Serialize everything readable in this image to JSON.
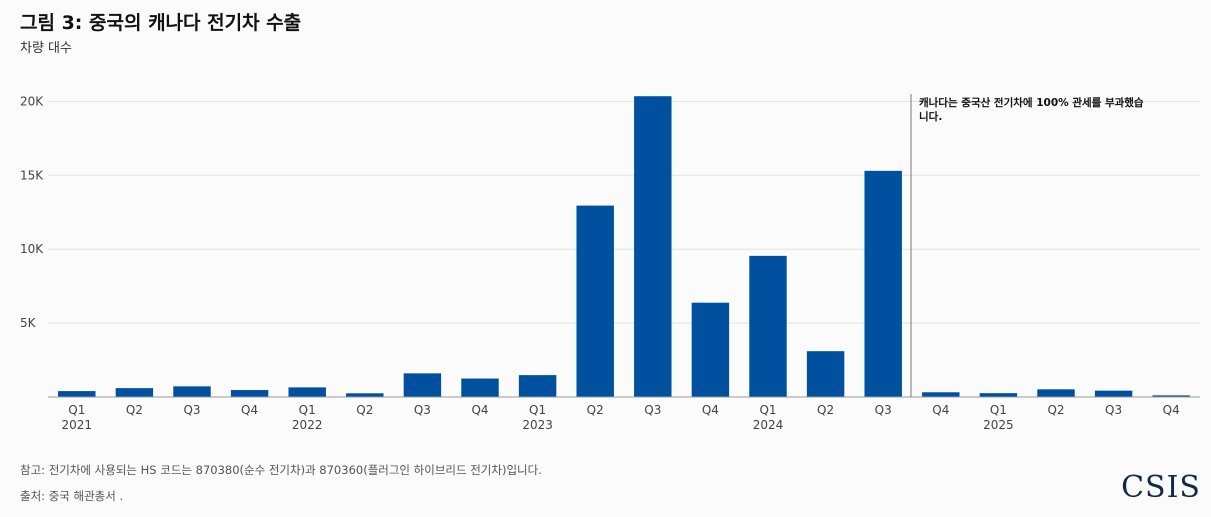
{
  "header": {
    "title": "그림 3: 중국의 캐나다 전기차 수출",
    "subtitle": "차량 대수"
  },
  "footer": {
    "note": "참고: 전기차에 사용되는 HS 코드는 870380(순수 전기차)과 870360(플러그인 하이브리드 전기차)입니다.",
    "source": "출처: 중국 해관총서 .",
    "logo": "CSIS"
  },
  "chart_data": {
    "type": "bar",
    "title": "그림 3: 중국의 캐나다 전기차 수출",
    "subtitle": "차량 대수",
    "categories": [
      "Q1",
      "Q2",
      "Q3",
      "Q4",
      "Q1",
      "Q2",
      "Q3",
      "Q4",
      "Q1",
      "Q2",
      "Q3",
      "Q4",
      "Q1",
      "Q2",
      "Q3",
      "Q4",
      "Q1",
      "Q2",
      "Q3",
      "Q4"
    ],
    "year_labels": [
      "2021",
      "",
      "",
      "",
      "2022",
      "",
      "",
      "",
      "2023",
      "",
      "",
      "",
      "2024",
      "",
      "",
      "",
      "2025",
      "",
      "",
      ""
    ],
    "values": [
      400,
      600,
      720,
      470,
      650,
      250,
      1600,
      1250,
      1480,
      12950,
      20350,
      6380,
      9550,
      3100,
      15300,
      320,
      260,
      520,
      430,
      110
    ],
    "ylim": [
      0,
      20500
    ],
    "yticks": [
      5000,
      10000,
      15000,
      20000
    ],
    "ytick_labels": [
      "5K",
      "10K",
      "15K",
      "20K"
    ],
    "grid": true,
    "bar_color": "#0050a0",
    "annotation": {
      "after_index": 14,
      "lines": [
        "캐나다는 중국산 전기차에 100% 관세를 부과했습",
        "니다."
      ]
    }
  }
}
